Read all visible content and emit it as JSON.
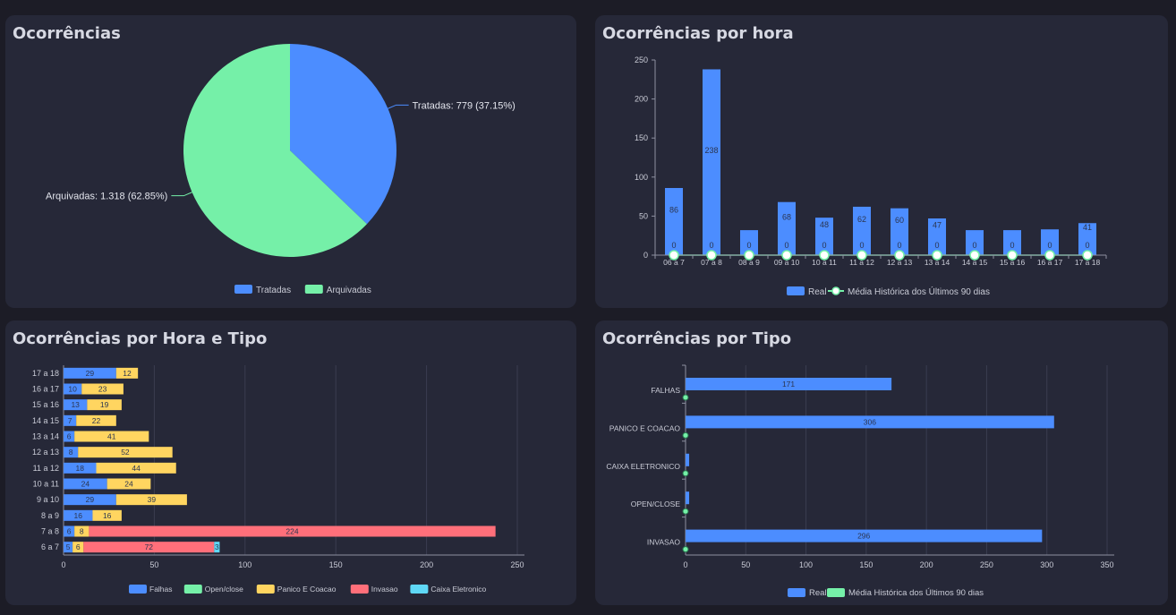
{
  "colors": {
    "blue": "#4c8dff",
    "green": "#75f0a8",
    "yellow": "#ffd560",
    "red": "#ff6f7a",
    "cyan": "#5fd8f6",
    "panel": "#262838",
    "background": "#1c1c26"
  },
  "panels": {
    "pie": {
      "title": "Ocorrências"
    },
    "hourly": {
      "title": "Ocorrências por hora"
    },
    "hour_type": {
      "title": "Ocorrências por Hora e Tipo"
    },
    "by_type": {
      "title": "Ocorrências por Tipo"
    }
  },
  "chart_data": [
    {
      "type": "pie",
      "title": "Ocorrências",
      "slices": [
        {
          "name": "Tratadas",
          "value": 779,
          "label": "Tratadas: 779 (37.15%)",
          "color": "#4c8dff"
        },
        {
          "name": "Arquivadas",
          "value": 1318,
          "label": "Arquivadas: 1.318 (62.85%)",
          "color": "#75f0a8"
        }
      ],
      "legend": [
        "Tratadas",
        "Arquivadas"
      ],
      "legend_position": "bottom"
    },
    {
      "type": "bar",
      "title": "Ocorrências por hora",
      "categories": [
        "06 a 7",
        "07 a 8",
        "08 a 9",
        "09 a 10",
        "10 a 11",
        "11 a 12",
        "12 a 13",
        "13 a 14",
        "14 a 15",
        "15 a 16",
        "16 a 17",
        "17 a 18"
      ],
      "series": [
        {
          "name": "Real",
          "kind": "bar",
          "color": "#4c8dff",
          "values": [
            86,
            238,
            32,
            68,
            48,
            62,
            60,
            47,
            32,
            32,
            33,
            41
          ],
          "labels": [
            "86",
            "238",
            "",
            "68",
            "48",
            "62",
            "60",
            "47",
            "",
            "",
            "",
            "41"
          ]
        },
        {
          "name": "Média Histórica dos Últimos 90 dias",
          "kind": "line",
          "color": "#75f0a8",
          "values": [
            0,
            0,
            0,
            0,
            0,
            0,
            0,
            0,
            0,
            0,
            0,
            0
          ]
        }
      ],
      "ylim": [
        0,
        250
      ],
      "yticks": [
        0,
        50,
        100,
        150,
        200,
        250
      ],
      "grid": false,
      "legend_position": "bottom"
    },
    {
      "type": "bar",
      "orientation": "horizontal",
      "stacked": true,
      "title": "Ocorrências por Hora e Tipo",
      "categories": [
        "17 a 18",
        "16 a 17",
        "15 a 16",
        "14 a 15",
        "13 a 14",
        "12 a 13",
        "11 a 12",
        "10 a 11",
        "9 a 10",
        "8 a 9",
        "7 a 8",
        "6 a 7"
      ],
      "series": [
        {
          "name": "Falhas",
          "color": "#4c8dff",
          "values": [
            29,
            10,
            13,
            7,
            6,
            8,
            18,
            24,
            29,
            16,
            6,
            5
          ]
        },
        {
          "name": "Open/close",
          "color": "#75f0a8",
          "values": [
            0,
            0,
            0,
            0,
            0,
            0,
            0,
            0,
            0,
            0,
            0,
            0
          ]
        },
        {
          "name": "Panico E Coacao",
          "color": "#ffd560",
          "values": [
            12,
            23,
            19,
            22,
            41,
            52,
            44,
            24,
            39,
            16,
            8,
            6
          ]
        },
        {
          "name": "Invasao",
          "color": "#ff6f7a",
          "values": [
            0,
            0,
            0,
            0,
            0,
            0,
            0,
            0,
            0,
            0,
            224,
            72
          ]
        },
        {
          "name": "Caixa Eletronico",
          "color": "#5fd8f6",
          "values": [
            0,
            0,
            0,
            0,
            0,
            0,
            0,
            0,
            0,
            0,
            0,
            3
          ]
        }
      ],
      "xlim": [
        0,
        250
      ],
      "xticks": [
        0,
        50,
        100,
        150,
        200,
        250
      ],
      "grid": true,
      "legend_position": "bottom"
    },
    {
      "type": "bar",
      "orientation": "horizontal",
      "title": "Ocorrências por Tipo",
      "categories": [
        "FALHAS",
        "PANICO E COACAO",
        "CAIXA ELETRONICO",
        "OPEN/CLOSE",
        "INVASAO"
      ],
      "series": [
        {
          "name": "Real",
          "color": "#4c8dff",
          "values": [
            171,
            306,
            3,
            3,
            296
          ],
          "labels": [
            "171",
            "306",
            "",
            "",
            "296"
          ]
        },
        {
          "name": "Média Histórica dos Últimos 90 dias",
          "color": "#75f0a8",
          "values": [
            0,
            0,
            0,
            0,
            0
          ]
        }
      ],
      "xlim": [
        0,
        350
      ],
      "xticks": [
        0,
        50,
        100,
        150,
        200,
        250,
        300,
        350
      ],
      "grid": true,
      "legend_position": "bottom"
    }
  ]
}
